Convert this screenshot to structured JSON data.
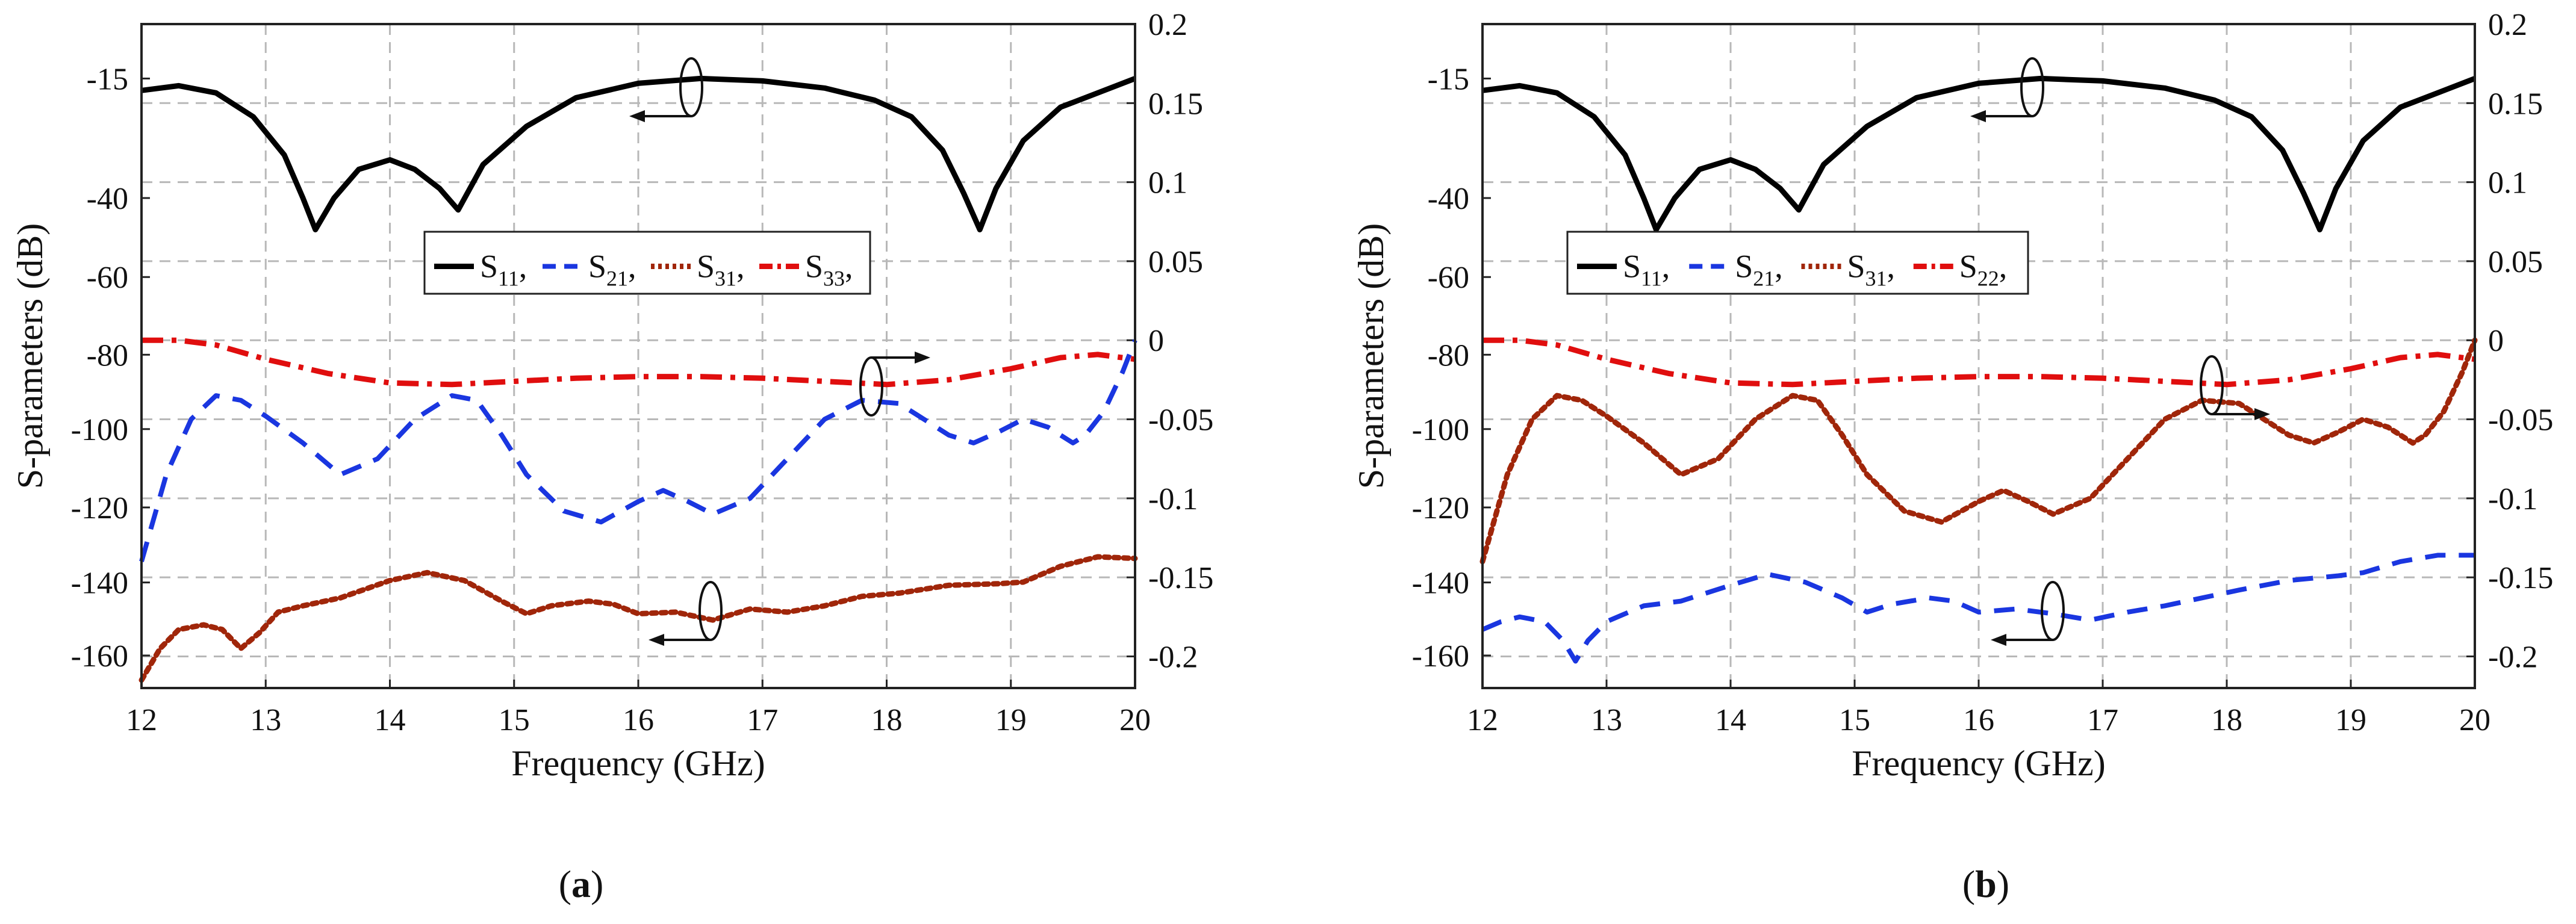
{
  "colors": {
    "s11": "#000000",
    "s21": "#1a36e0",
    "s31": "#a0260a",
    "s33": "#e00e0e",
    "grid": "#b8b8b8"
  },
  "chart_data": [
    {
      "type": "line",
      "panel": "a",
      "caption": {
        "open": "(",
        "letter": "a",
        "close": ")"
      },
      "xlabel": "Frequency (GHz)",
      "ylabel": "S-parameters (dB)",
      "x_ticks": [
        "12",
        "13",
        "14",
        "15",
        "16",
        "17",
        "18",
        "19",
        "20"
      ],
      "y_left_ticks": [
        "-15",
        "-40",
        "-60",
        "-80",
        "-100",
        "-120",
        "-140",
        "-160"
      ],
      "y_right_ticks": [
        "0.2",
        "0.15",
        "0.1",
        "0.05",
        "0",
        "-0.05",
        "-0.1",
        "-0.15",
        "-0.2"
      ],
      "xlim": [
        12,
        20
      ],
      "ylim_right": [
        -0.22,
        0.2
      ],
      "legend": [
        {
          "main": "S",
          "sub": "11",
          "suffix": ","
        },
        {
          "main": "S",
          "sub": "21",
          "suffix": ","
        },
        {
          "main": "S",
          "sub": "31",
          "suffix": ","
        },
        {
          "main": "S",
          "sub": "33",
          "suffix": ","
        }
      ],
      "series": [
        {
          "name": "S11,",
          "axis": "left",
          "style": "solid",
          "x": [
            12,
            12.3,
            12.6,
            12.9,
            13.15,
            13.3,
            13.4,
            13.55,
            13.75,
            14.0,
            14.2,
            14.4,
            14.55,
            14.75,
            15.1,
            15.5,
            16.0,
            16.5,
            17.0,
            17.5,
            17.9,
            18.2,
            18.45,
            18.62,
            18.75,
            18.88,
            19.1,
            19.4,
            19.7,
            20.0
          ],
          "y": [
            -17.5,
            -16.5,
            -18,
            -23,
            -31,
            -40,
            -48,
            -40,
            -34,
            -32,
            -34,
            -38,
            -43,
            -33,
            -25,
            -19,
            -16,
            -15,
            -15.5,
            -17,
            -19.5,
            -23,
            -30,
            -39,
            -48,
            -38,
            -28,
            -21,
            -18,
            -15
          ]
        },
        {
          "name": "S21,",
          "axis": "right",
          "style": "dashed",
          "x": [
            12,
            12.2,
            12.4,
            12.6,
            12.8,
            13.0,
            13.3,
            13.6,
            13.9,
            14.2,
            14.5,
            14.7,
            14.9,
            15.1,
            15.4,
            15.7,
            16.0,
            16.2,
            16.4,
            16.6,
            16.9,
            17.2,
            17.5,
            17.8,
            18.1,
            18.3,
            18.5,
            18.7,
            18.9,
            19.1,
            19.3,
            19.5,
            19.6,
            19.75,
            19.9,
            20.0
          ],
          "y": [
            -0.14,
            -0.085,
            -0.05,
            -0.035,
            -0.038,
            -0.048,
            -0.065,
            -0.085,
            -0.075,
            -0.05,
            -0.035,
            -0.038,
            -0.06,
            -0.085,
            -0.108,
            -0.115,
            -0.102,
            -0.095,
            -0.102,
            -0.11,
            -0.1,
            -0.075,
            -0.05,
            -0.038,
            -0.04,
            -0.05,
            -0.06,
            -0.065,
            -0.058,
            -0.05,
            -0.055,
            -0.065,
            -0.06,
            -0.045,
            -0.02,
            0.0
          ]
        },
        {
          "name": "S31,",
          "axis": "right",
          "style": "dotted",
          "x": [
            12,
            12.15,
            12.3,
            12.5,
            12.65,
            12.8,
            12.95,
            13.1,
            13.3,
            13.6,
            14.0,
            14.3,
            14.6,
            14.9,
            15.1,
            15.3,
            15.6,
            15.8,
            16.0,
            16.3,
            16.6,
            16.9,
            17.2,
            17.5,
            17.8,
            18.1,
            18.5,
            18.9,
            19.1,
            19.4,
            19.7,
            20.0
          ],
          "y": [
            -0.215,
            -0.195,
            -0.183,
            -0.18,
            -0.183,
            -0.195,
            -0.185,
            -0.172,
            -0.168,
            -0.163,
            -0.152,
            -0.147,
            -0.152,
            -0.165,
            -0.173,
            -0.168,
            -0.165,
            -0.167,
            -0.173,
            -0.172,
            -0.177,
            -0.17,
            -0.172,
            -0.168,
            -0.162,
            -0.16,
            -0.155,
            -0.154,
            -0.153,
            -0.143,
            -0.137,
            -0.138
          ]
        },
        {
          "name": "S33,",
          "axis": "right",
          "style": "dashdot",
          "x": [
            12,
            12.3,
            12.6,
            13.0,
            13.5,
            14.0,
            14.5,
            15.0,
            15.5,
            16.0,
            16.5,
            17.0,
            17.5,
            18.0,
            18.5,
            19.0,
            19.4,
            19.7,
            20.0
          ],
          "y": [
            0.0,
            0.0,
            -0.003,
            -0.012,
            -0.021,
            -0.027,
            -0.028,
            -0.026,
            -0.024,
            -0.023,
            -0.023,
            -0.024,
            -0.026,
            -0.028,
            -0.025,
            -0.018,
            -0.011,
            -0.009,
            -0.012
          ]
        }
      ]
    },
    {
      "type": "line",
      "panel": "b",
      "caption": {
        "open": "(",
        "letter": "b",
        "close": ")"
      },
      "xlabel": "Frequency (GHz)",
      "ylabel": "S-parameters (dB)",
      "x_ticks": [
        "12",
        "13",
        "14",
        "15",
        "16",
        "17",
        "18",
        "19",
        "20"
      ],
      "y_left_ticks": [
        "-15",
        "-40",
        "-60",
        "-80",
        "-100",
        "-120",
        "-140",
        "-160"
      ],
      "y_right_ticks": [
        "0.2",
        "0.15",
        "0.1",
        "0.05",
        "0",
        "-0.05",
        "-0.1",
        "-0.15",
        "-0.2"
      ],
      "xlim": [
        12,
        20
      ],
      "ylim_right": [
        -0.22,
        0.2
      ],
      "legend": [
        {
          "main": "S",
          "sub": "11",
          "suffix": ","
        },
        {
          "main": "S",
          "sub": "21",
          "suffix": ","
        },
        {
          "main": "S",
          "sub": "31",
          "suffix": ","
        },
        {
          "main": "S",
          "sub": "22",
          "suffix": ","
        }
      ],
      "series": [
        {
          "name": "S11,",
          "axis": "left",
          "style": "solid",
          "x": [
            12,
            12.3,
            12.6,
            12.9,
            13.15,
            13.3,
            13.4,
            13.55,
            13.75,
            14.0,
            14.2,
            14.4,
            14.55,
            14.75,
            15.1,
            15.5,
            16.0,
            16.5,
            17.0,
            17.5,
            17.9,
            18.2,
            18.45,
            18.62,
            18.75,
            18.88,
            19.1,
            19.4,
            19.7,
            20.0
          ],
          "y": [
            -17.5,
            -16.5,
            -18,
            -23,
            -31,
            -40,
            -48,
            -40,
            -34,
            -32,
            -34,
            -38,
            -43,
            -33,
            -25,
            -19,
            -16,
            -15,
            -15.5,
            -17,
            -19.5,
            -23,
            -30,
            -39,
            -48,
            -38,
            -28,
            -21,
            -18,
            -15
          ]
        },
        {
          "name": "S21,",
          "axis": "right",
          "style": "dashed",
          "x": [
            12,
            12.15,
            12.3,
            12.5,
            12.65,
            12.75,
            12.85,
            13.0,
            13.3,
            13.6,
            14.0,
            14.3,
            14.6,
            14.9,
            15.1,
            15.3,
            15.6,
            15.8,
            16.0,
            16.3,
            16.6,
            16.9,
            17.2,
            17.5,
            17.8,
            18.1,
            18.5,
            18.9,
            19.1,
            19.4,
            19.7,
            20.0
          ],
          "y": [
            -0.183,
            -0.178,
            -0.175,
            -0.178,
            -0.19,
            -0.203,
            -0.19,
            -0.178,
            -0.168,
            -0.165,
            -0.155,
            -0.148,
            -0.153,
            -0.163,
            -0.172,
            -0.167,
            -0.163,
            -0.165,
            -0.172,
            -0.17,
            -0.173,
            -0.177,
            -0.172,
            -0.168,
            -0.163,
            -0.158,
            -0.152,
            -0.149,
            -0.147,
            -0.14,
            -0.136,
            -0.136
          ]
        },
        {
          "name": "S31,",
          "axis": "right",
          "style": "dotted",
          "x": [
            12,
            12.2,
            12.4,
            12.6,
            12.8,
            13.0,
            13.3,
            13.6,
            13.9,
            14.2,
            14.5,
            14.7,
            14.9,
            15.1,
            15.4,
            15.7,
            16.0,
            16.2,
            16.4,
            16.6,
            16.9,
            17.2,
            17.5,
            17.8,
            18.1,
            18.3,
            18.5,
            18.7,
            18.9,
            19.1,
            19.3,
            19.5,
            19.6,
            19.75,
            19.9,
            20.0
          ],
          "y": [
            -0.14,
            -0.085,
            -0.05,
            -0.035,
            -0.038,
            -0.048,
            -0.065,
            -0.085,
            -0.075,
            -0.05,
            -0.035,
            -0.038,
            -0.06,
            -0.085,
            -0.108,
            -0.115,
            -0.102,
            -0.095,
            -0.102,
            -0.11,
            -0.1,
            -0.075,
            -0.05,
            -0.038,
            -0.04,
            -0.05,
            -0.06,
            -0.065,
            -0.058,
            -0.05,
            -0.055,
            -0.065,
            -0.06,
            -0.045,
            -0.02,
            0.0
          ]
        },
        {
          "name": "S22,",
          "axis": "right",
          "style": "dashdot",
          "x": [
            12,
            12.3,
            12.6,
            13.0,
            13.5,
            14.0,
            14.5,
            15.0,
            15.5,
            16.0,
            16.5,
            17.0,
            17.5,
            18.0,
            18.5,
            19.0,
            19.4,
            19.7,
            20.0
          ],
          "y": [
            0.0,
            0.0,
            -0.003,
            -0.012,
            -0.021,
            -0.027,
            -0.028,
            -0.026,
            -0.024,
            -0.023,
            -0.023,
            -0.024,
            -0.026,
            -0.028,
            -0.025,
            -0.018,
            -0.011,
            -0.009,
            -0.012
          ]
        }
      ]
    }
  ]
}
